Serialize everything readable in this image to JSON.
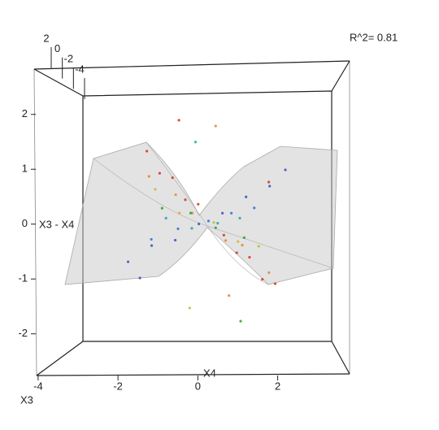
{
  "chart_data": {
    "type": "scatter3d",
    "annotation": "R^2= 0.81",
    "xlabel": "X4",
    "ylabel": "X3",
    "zlabel": "X3 - X4",
    "xlim": [
      -4.1,
      3.8
    ],
    "xticks": [
      -4,
      -2,
      0,
      2
    ],
    "ylim": [
      -4.5,
      2.5
    ],
    "yticks": [
      2,
      0,
      -2,
      -4
    ],
    "zlim": [
      -2.76,
      2.9
    ],
    "zticks": [
      -2,
      -1,
      0,
      1,
      2
    ],
    "colormap": [
      "#d7301f",
      "#e8832a",
      "#c9b52c",
      "#2ca02c",
      "#19a9a0",
      "#2b6fd9",
      "#3a4fc0"
    ],
    "points": {
      "x": [
        -2.0,
        -1.6,
        -1.2,
        -0.8,
        -0.4,
        0.4,
        0.8,
        1.2,
        1.6,
        2.0,
        -1.8,
        -1.0,
        -0.5,
        0.5,
        1.0,
        1.8,
        -1.5,
        -0.8,
        0.2,
        0.9,
        1.5,
        -1.2,
        -0.4,
        0.3,
        1.1,
        -1.0,
        -0.3,
        0.4,
        1.0,
        -1.3,
        -0.6,
        0.2,
        0.8,
        1.4,
        -1.8,
        -1.2,
        -0.6,
        0.0,
        0.6,
        1.2,
        1.8,
        -1.0,
        0.2,
        1.8,
        -0.5,
        1.0,
        -1.5,
        2.2,
        -0.2,
        0.6
      ],
      "y": [
        -4,
        -4,
        -4,
        -4,
        -4,
        -4,
        -4,
        -4,
        -4,
        -4,
        -3,
        -3,
        -3,
        -3,
        -3,
        -3,
        -2,
        -2,
        -2,
        -2,
        -2,
        -1,
        -1,
        -1,
        -1,
        0,
        0,
        0,
        0,
        1,
        1,
        1,
        1,
        1,
        2,
        2,
        2,
        2,
        2,
        2,
        2,
        -4,
        -3,
        -4,
        -2,
        -1,
        2,
        2,
        0,
        -3
      ],
      "z": [
        1.6,
        1.1,
        1.0,
        0.5,
        0.4,
        -0.3,
        -0.7,
        -0.8,
        -1.3,
        -1.4,
        1.0,
        0.6,
        0.2,
        -0.4,
        -0.5,
        -1.1,
        0.7,
        0.2,
        0.0,
        -0.4,
        -0.5,
        0.3,
        0.2,
        -0.1,
        -0.3,
        0.1,
        -0.1,
        0.0,
        0.1,
        -0.3,
        -0.1,
        0.05,
        0.2,
        0.3,
        -0.7,
        -0.4,
        -0.3,
        0.0,
        0.2,
        0.5,
        0.7,
        2.3,
        2.1,
        0.9,
        -1.8,
        -2.0,
        -1.0,
        1.0,
        1.6,
        -1.6
      ]
    }
  }
}
